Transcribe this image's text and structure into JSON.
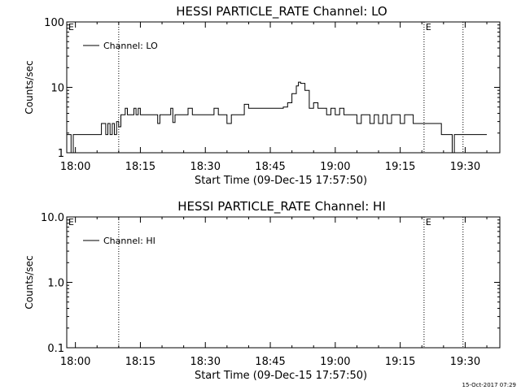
{
  "footer_stamp": "15-Oct-2017 07:29",
  "chart_data": [
    {
      "type": "line",
      "title": "HESSI PARTICLE_RATE Channel: LO",
      "xlabel": "Start Time (09-Dec-15 17:57:50)",
      "ylabel": "Counts/sec",
      "xscale": "time",
      "yscale": "log",
      "xlim": [
        "17:58:00",
        "19:38:00"
      ],
      "ylim": [
        1,
        100
      ],
      "xticks": [
        "18:00",
        "18:15",
        "18:30",
        "18:45",
        "19:00",
        "19:15",
        "19:30"
      ],
      "yticks": [
        "1",
        "10",
        "100"
      ],
      "legend": {
        "position": "top-left",
        "entries": [
          "Channel: LO"
        ]
      },
      "annotations": [
        {
          "text": "E",
          "x": "17:58:00"
        },
        {
          "text": "E",
          "x": "19:20:30"
        }
      ],
      "vlines": [
        "18:10:00",
        "19:20:30",
        "19:29:30"
      ],
      "series": [
        {
          "name": "Channel: LO",
          "x": [
            "17:58:00",
            "17:59:00",
            "17:59:30",
            "18:00:00",
            "18:01:00",
            "18:02:00",
            "18:03:00",
            "18:04:00",
            "18:05:00",
            "18:06:00",
            "18:07:00",
            "18:07:30",
            "18:08:00",
            "18:08:30",
            "18:09:00",
            "18:09:30",
            "18:10:00",
            "18:10:30",
            "18:11:00",
            "18:11:30",
            "18:12:00",
            "18:13:00",
            "18:13:30",
            "18:14:00",
            "18:14:30",
            "18:15:00",
            "18:15:30",
            "18:16:00",
            "18:17:00",
            "18:18:00",
            "18:19:00",
            "18:19:30",
            "18:20:00",
            "18:21:00",
            "18:22:00",
            "18:22:30",
            "18:23:00",
            "18:24:00",
            "18:25:00",
            "18:26:00",
            "18:27:00",
            "18:28:00",
            "18:29:00",
            "18:30:00",
            "18:31:00",
            "18:32:00",
            "18:33:00",
            "18:34:00",
            "18:35:00",
            "18:36:00",
            "18:37:00",
            "18:38:00",
            "18:39:00",
            "18:40:00",
            "18:41:00",
            "18:42:00",
            "18:43:00",
            "18:44:00",
            "18:45:00",
            "18:46:00",
            "18:47:00",
            "18:48:00",
            "18:49:00",
            "18:50:00",
            "18:51:00",
            "18:51:30",
            "18:52:00",
            "18:53:00",
            "18:54:00",
            "18:55:00",
            "18:56:00",
            "18:57:00",
            "18:58:00",
            "18:59:00",
            "19:00:00",
            "19:01:00",
            "19:02:00",
            "19:03:00",
            "19:04:00",
            "19:05:00",
            "19:06:00",
            "19:07:00",
            "19:08:00",
            "19:09:00",
            "19:10:00",
            "19:11:00",
            "19:12:00",
            "19:13:00",
            "19:14:00",
            "19:15:00",
            "19:16:00",
            "19:17:00",
            "19:18:00",
            "19:19:00",
            "19:20:00",
            "19:21:00",
            "19:22:00",
            "19:23:00",
            "19:24:00",
            "19:24:30",
            "19:25:00",
            "19:26:00",
            "19:27:00",
            "19:27:30",
            "19:28:00",
            "19:29:00",
            "19:30:00",
            "19:31:00",
            "19:32:00",
            "19:33:00",
            "19:34:00",
            "19:35:00"
          ],
          "values": [
            1.9,
            1.0,
            1.9,
            1.9,
            1.9,
            1.9,
            1.9,
            1.9,
            1.9,
            2.8,
            1.9,
            2.8,
            1.9,
            2.8,
            1.9,
            3.0,
            2.5,
            3.8,
            3.8,
            4.8,
            3.8,
            3.8,
            4.8,
            3.8,
            4.8,
            3.8,
            3.8,
            3.8,
            3.8,
            3.8,
            2.8,
            3.8,
            3.8,
            3.8,
            4.8,
            2.9,
            3.8,
            3.8,
            3.8,
            4.8,
            3.8,
            3.8,
            3.8,
            3.8,
            3.8,
            4.8,
            3.8,
            3.8,
            2.8,
            3.8,
            3.8,
            3.8,
            5.5,
            4.8,
            4.8,
            4.8,
            4.8,
            4.8,
            4.8,
            4.8,
            4.8,
            5.0,
            5.8,
            8.0,
            10.5,
            12.0,
            11.5,
            9.0,
            4.8,
            5.8,
            4.8,
            4.8,
            3.8,
            4.8,
            3.8,
            4.8,
            3.8,
            3.8,
            3.8,
            2.8,
            3.8,
            3.8,
            2.8,
            3.8,
            2.8,
            3.8,
            2.8,
            3.8,
            3.8,
            2.8,
            3.8,
            3.8,
            2.8,
            2.8,
            2.8,
            2.8,
            2.8,
            2.8,
            2.8,
            1.9,
            1.9,
            1.9,
            1.0,
            1.9,
            1.9,
            1.9,
            1.9,
            1.9,
            1.9,
            1.9,
            1.9,
            1.9
          ]
        }
      ]
    },
    {
      "type": "line",
      "title": "HESSI PARTICLE_RATE Channel: HI",
      "xlabel": "Start Time (09-Dec-15 17:57:50)",
      "ylabel": "Counts/sec",
      "xscale": "time",
      "yscale": "log",
      "xlim": [
        "17:58:00",
        "19:38:00"
      ],
      "ylim": [
        0.1,
        10
      ],
      "xticks": [
        "18:00",
        "18:15",
        "18:30",
        "18:45",
        "19:00",
        "19:15",
        "19:30"
      ],
      "yticks": [
        "0.1",
        "1.0",
        "10.0"
      ],
      "legend": {
        "position": "top-left",
        "entries": [
          "Channel: HI"
        ]
      },
      "annotations": [
        {
          "text": "E",
          "x": "17:58:00"
        },
        {
          "text": "E",
          "x": "19:20:30"
        }
      ],
      "vlines": [
        "18:10:00",
        "19:20:30",
        "19:29:30"
      ],
      "series": [
        {
          "name": "Channel: HI",
          "x": [],
          "values": []
        }
      ]
    }
  ]
}
